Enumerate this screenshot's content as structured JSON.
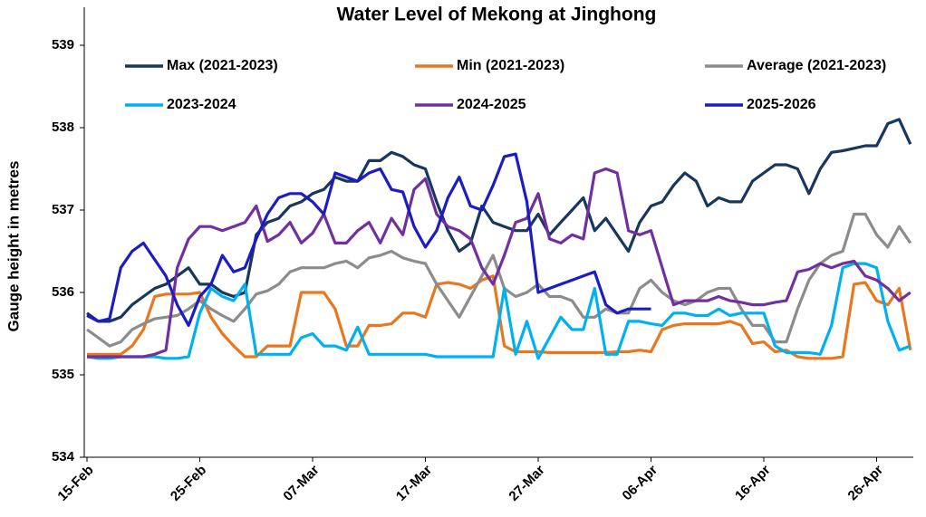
{
  "chart_data": {
    "type": "line",
    "title": "Water Level of Mekong at Jinghong",
    "y_label": "Gauge height in metres",
    "categories": [
      "15-Feb",
      null,
      null,
      null,
      null,
      null,
      null,
      null,
      null,
      null,
      "25-Feb",
      null,
      null,
      null,
      null,
      null,
      null,
      null,
      null,
      null,
      "07-Mar",
      null,
      null,
      null,
      null,
      null,
      null,
      null,
      null,
      null,
      "17-Mar",
      null,
      null,
      null,
      null,
      null,
      null,
      null,
      null,
      null,
      "27-Mar",
      null,
      null,
      null,
      null,
      null,
      null,
      null,
      null,
      null,
      "06-Apr",
      null,
      null,
      null,
      null,
      null,
      null,
      null,
      null,
      null,
      "16-Apr",
      null,
      null,
      null,
      null,
      null,
      null,
      null,
      null,
      null,
      "26-Apr",
      null,
      null,
      null
    ],
    "ylim": [
      534,
      539
    ],
    "yticks": [
      534,
      535,
      536,
      537,
      538,
      539
    ],
    "grid": false,
    "legend": "top",
    "series": [
      {
        "name": "Max (2021-2023)",
        "color": "#17375e",
        "values": [
          535.75,
          535.65,
          535.65,
          535.7,
          535.85,
          535.95,
          536.05,
          536.1,
          536.2,
          536.3,
          536.1,
          536.1,
          536.0,
          535.95,
          536.0,
          536.7,
          536.85,
          536.9,
          537.05,
          537.1,
          537.2,
          537.25,
          537.4,
          537.35,
          537.35,
          537.6,
          537.6,
          537.7,
          537.65,
          537.55,
          537.5,
          537.1,
          536.75,
          536.5,
          536.6,
          537.05,
          536.85,
          536.8,
          536.75,
          536.75,
          536.95,
          536.7,
          536.85,
          537.0,
          537.15,
          536.75,
          536.9,
          536.7,
          536.5,
          536.85,
          537.05,
          537.1,
          537.3,
          537.45,
          537.35,
          537.05,
          537.15,
          537.1,
          537.1,
          537.35,
          537.45,
          537.55,
          537.55,
          537.5,
          537.2,
          537.5,
          537.7,
          537.72,
          537.75,
          537.78,
          537.78,
          538.05,
          538.1,
          537.8
        ]
      },
      {
        "name": "Min (2021-2023)",
        "color": "#e8771e",
        "values": [
          535.25,
          535.25,
          535.25,
          535.25,
          535.35,
          535.55,
          535.95,
          535.98,
          535.98,
          535.98,
          536.0,
          535.7,
          535.5,
          535.35,
          535.22,
          535.22,
          535.35,
          535.35,
          535.35,
          536.0,
          536.0,
          536.0,
          535.8,
          535.35,
          535.35,
          535.6,
          535.6,
          535.62,
          535.75,
          535.75,
          535.7,
          536.1,
          536.12,
          536.1,
          536.05,
          536.15,
          536.2,
          535.35,
          535.28,
          535.28,
          535.28,
          535.27,
          535.27,
          535.27,
          535.27,
          535.27,
          535.27,
          535.28,
          535.28,
          535.3,
          535.28,
          535.55,
          535.6,
          535.62,
          535.62,
          535.62,
          535.62,
          535.65,
          535.6,
          535.38,
          535.4,
          535.28,
          535.3,
          535.22,
          535.2,
          535.2,
          535.2,
          535.22,
          536.1,
          536.12,
          535.9,
          535.85,
          536.05,
          535.3
        ]
      },
      {
        "name": "Average (2021-2023)",
        "color": "#8c8c8c",
        "values": [
          535.55,
          535.45,
          535.35,
          535.4,
          535.55,
          535.62,
          535.68,
          535.7,
          535.72,
          535.8,
          535.9,
          535.8,
          535.72,
          535.65,
          535.8,
          535.98,
          536.02,
          536.1,
          536.25,
          536.3,
          536.3,
          536.3,
          536.35,
          536.38,
          536.3,
          536.42,
          536.45,
          536.5,
          536.42,
          536.38,
          536.35,
          536.1,
          535.9,
          535.7,
          535.95,
          536.2,
          536.45,
          536.05,
          535.95,
          536.0,
          536.1,
          535.95,
          535.95,
          535.9,
          535.7,
          535.7,
          535.8,
          535.75,
          535.75,
          536.05,
          536.15,
          536.0,
          535.9,
          535.85,
          535.9,
          536.0,
          536.05,
          536.05,
          535.8,
          535.6,
          535.6,
          535.4,
          535.4,
          535.8,
          536.15,
          536.35,
          536.45,
          536.5,
          536.95,
          536.95,
          536.7,
          536.55,
          536.8,
          536.6
        ]
      },
      {
        "name": "2023-2024",
        "color": "#00b0f0",
        "values": [
          535.22,
          535.2,
          535.2,
          535.22,
          535.22,
          535.22,
          535.22,
          535.2,
          535.2,
          535.22,
          535.75,
          536.05,
          535.95,
          535.9,
          536.1,
          535.25,
          535.25,
          535.25,
          535.25,
          535.45,
          535.5,
          535.35,
          535.35,
          535.3,
          535.58,
          535.25,
          535.25,
          535.25,
          535.25,
          535.25,
          535.25,
          535.22,
          535.22,
          535.22,
          535.22,
          535.22,
          535.22,
          536.05,
          535.25,
          535.65,
          535.2,
          535.45,
          535.7,
          535.55,
          535.55,
          536.05,
          535.25,
          535.25,
          535.65,
          535.65,
          535.62,
          535.6,
          535.75,
          535.75,
          535.72,
          535.72,
          535.8,
          535.72,
          535.75,
          535.75,
          535.75,
          535.35,
          535.27,
          535.27,
          535.27,
          535.25,
          535.6,
          536.3,
          536.35,
          536.35,
          536.3,
          535.65,
          535.3,
          535.35
        ]
      },
      {
        "name": "2024-2025",
        "color": "#7030a0",
        "values": [
          535.22,
          535.22,
          535.22,
          535.22,
          535.22,
          535.22,
          535.25,
          535.3,
          536.3,
          536.65,
          536.8,
          536.8,
          536.75,
          536.8,
          536.85,
          537.05,
          536.62,
          536.7,
          536.85,
          536.6,
          536.72,
          536.95,
          536.6,
          536.6,
          536.75,
          536.85,
          536.6,
          536.9,
          536.7,
          537.25,
          537.38,
          536.95,
          536.8,
          536.75,
          536.65,
          536.3,
          536.1,
          536.45,
          536.85,
          536.9,
          537.2,
          536.65,
          536.6,
          536.7,
          536.65,
          537.45,
          537.5,
          537.45,
          536.75,
          536.7,
          536.75,
          536.3,
          535.85,
          535.9,
          535.9,
          535.9,
          535.95,
          535.9,
          535.88,
          535.85,
          535.85,
          535.88,
          535.9,
          536.25,
          536.28,
          536.35,
          536.3,
          536.35,
          536.38,
          536.2,
          536.15,
          536.05,
          535.9,
          536.0
        ]
      },
      {
        "name": "2025-2026",
        "color": "#1c1cc4",
        "values": [
          535.72,
          535.65,
          535.68,
          536.3,
          536.5,
          536.6,
          536.4,
          536.2,
          535.85,
          535.6,
          535.95,
          536.1,
          536.45,
          536.25,
          536.3,
          536.65,
          536.95,
          537.15,
          537.2,
          537.2,
          537.1,
          536.95,
          537.45,
          537.4,
          537.35,
          537.45,
          537.5,
          537.25,
          537.22,
          536.8,
          536.55,
          536.75,
          537.15,
          537.4,
          537.05,
          537.0,
          537.3,
          537.65,
          537.68,
          537.1,
          536.0,
          536.05,
          536.1,
          536.15,
          536.2,
          536.25,
          535.85,
          535.75,
          535.8,
          535.8,
          535.8,
          null,
          null,
          null,
          null,
          null,
          null,
          null,
          null,
          null,
          null,
          null,
          null,
          null,
          null,
          null,
          null,
          null,
          null,
          null,
          null,
          null,
          null,
          null
        ]
      }
    ]
  }
}
